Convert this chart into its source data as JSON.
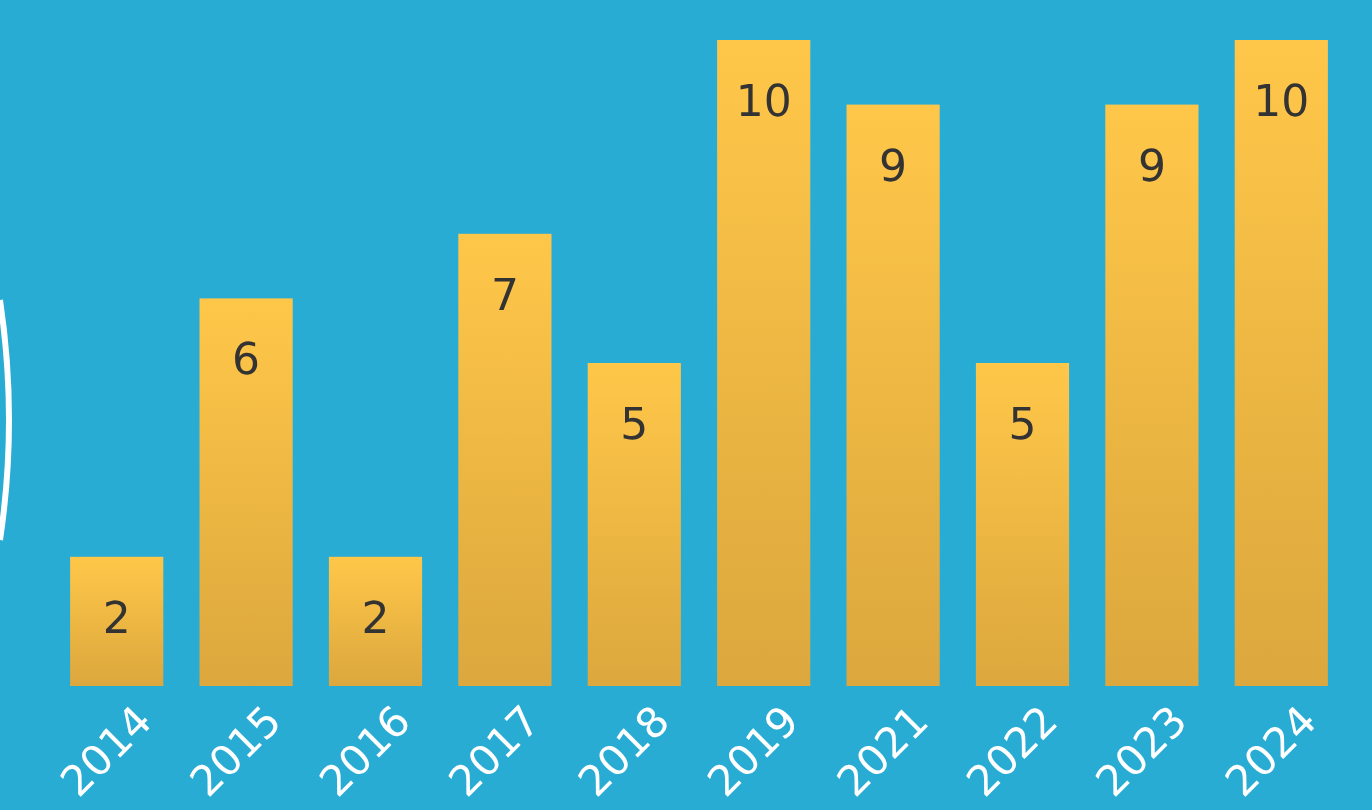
{
  "chart_data": {
    "type": "bar",
    "categories": [
      "2014",
      "2015",
      "2016",
      "2017",
      "2018",
      "2019",
      "2021",
      "2022",
      "2023",
      "2024"
    ],
    "values": [
      2,
      6,
      2,
      7,
      5,
      10,
      9,
      5,
      9,
      10
    ],
    "color": "#e8b040",
    "data_labels": true
  }
}
